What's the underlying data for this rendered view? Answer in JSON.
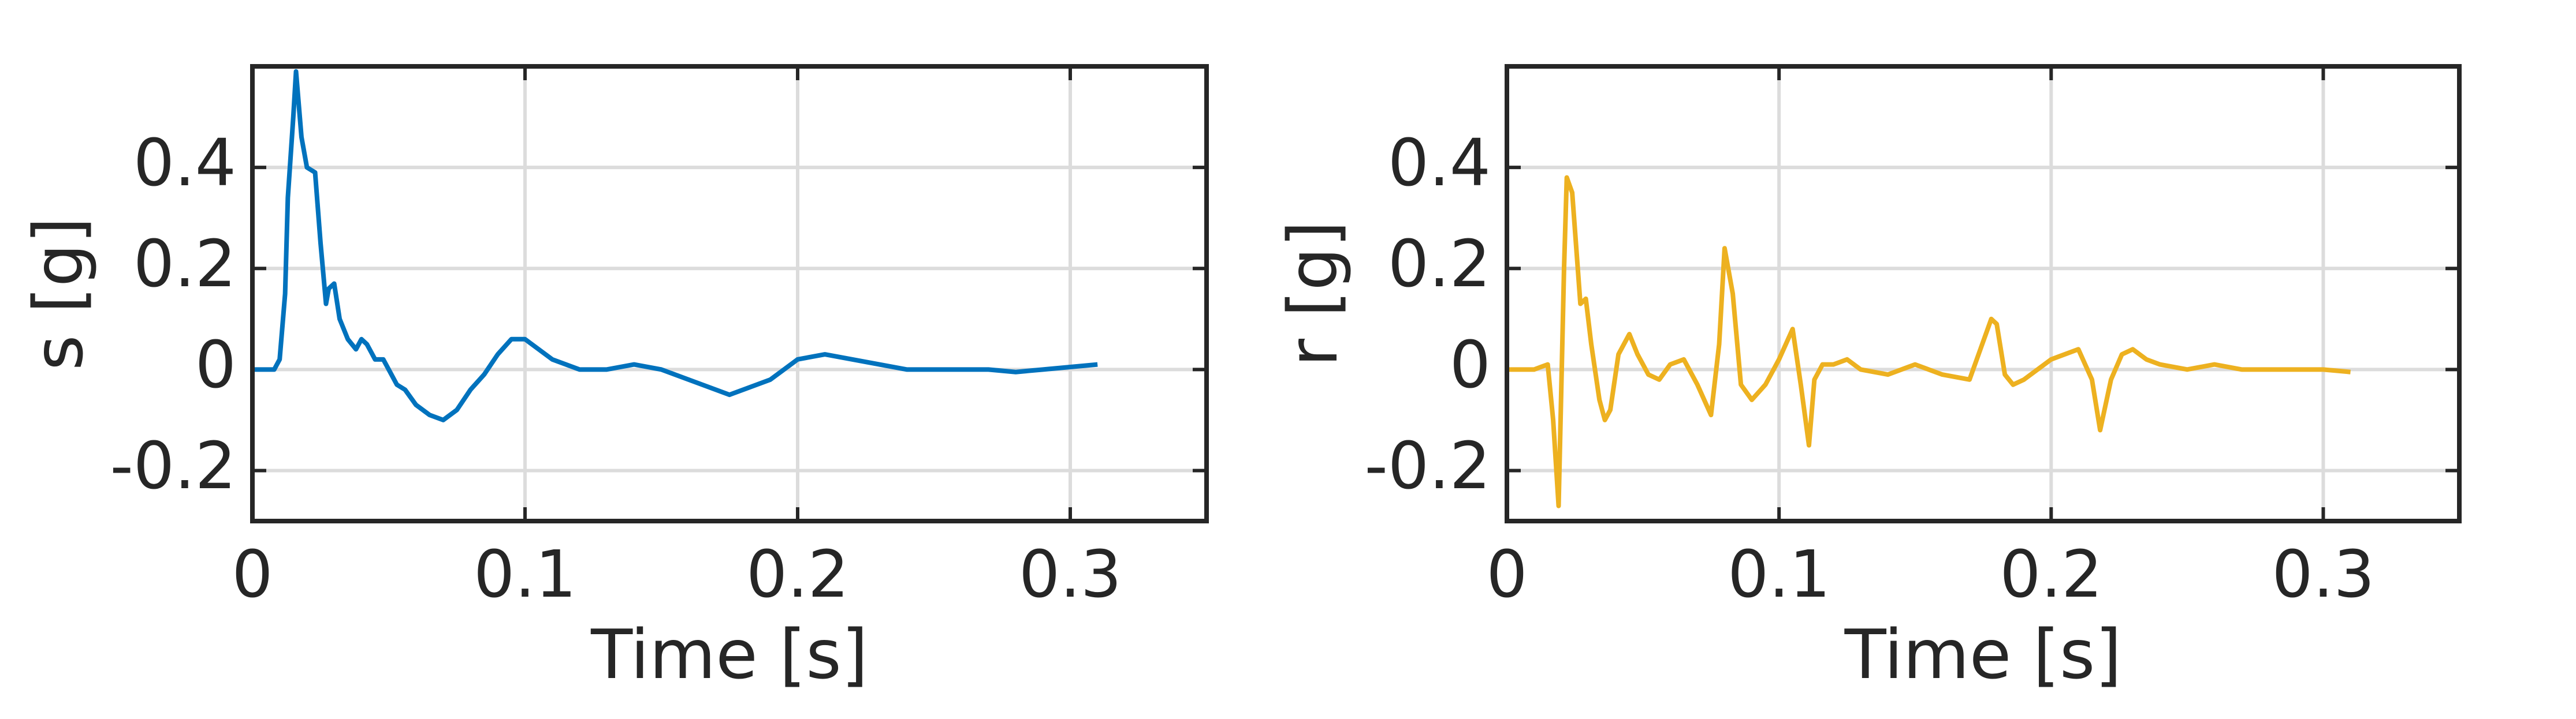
{
  "chart_data": [
    {
      "type": "line",
      "ylabel": "s [g]",
      "xlabel": "Time [s]",
      "color": "#0072bd",
      "x": [
        0,
        0.008,
        0.01,
        0.012,
        0.013,
        0.015,
        0.016,
        0.018,
        0.02,
        0.023,
        0.025,
        0.027,
        0.028,
        0.03,
        0.032,
        0.035,
        0.038,
        0.04,
        0.042,
        0.045,
        0.048,
        0.05,
        0.053,
        0.056,
        0.06,
        0.065,
        0.07,
        0.075,
        0.08,
        0.085,
        0.09,
        0.095,
        0.1,
        0.105,
        0.11,
        0.12,
        0.13,
        0.14,
        0.15,
        0.16,
        0.17,
        0.175,
        0.18,
        0.19,
        0.2,
        0.21,
        0.22,
        0.23,
        0.24,
        0.25,
        0.26,
        0.27,
        0.28,
        0.29,
        0.3,
        0.31
      ],
      "values": [
        0,
        0,
        0.02,
        0.15,
        0.34,
        0.5,
        0.59,
        0.46,
        0.4,
        0.39,
        0.25,
        0.13,
        0.16,
        0.17,
        0.1,
        0.06,
        0.04,
        0.06,
        0.05,
        0.02,
        0.02,
        0,
        -0.03,
        -0.04,
        -0.07,
        -0.09,
        -0.1,
        -0.08,
        -0.04,
        -0.01,
        0.03,
        0.06,
        0.06,
        0.04,
        0.02,
        0,
        0,
        0.01,
        0,
        -0.02,
        -0.04,
        -0.05,
        -0.04,
        -0.02,
        0.02,
        0.03,
        0.02,
        0.01,
        0,
        0,
        0,
        0,
        -0.005,
        0,
        0.005,
        0.01
      ],
      "xlim": [
        0,
        0.35
      ],
      "xticks": [
        0,
        0.1,
        0.2,
        0.3
      ],
      "ylim": [
        -0.3,
        0.6
      ],
      "yticks": [
        -0.2,
        0,
        0.2,
        0.4
      ],
      "grid": true
    },
    {
      "type": "line",
      "ylabel": "r [g]",
      "xlabel": "Time [s]",
      "color": "#edb120",
      "x": [
        0,
        0.01,
        0.015,
        0.017,
        0.019,
        0.021,
        0.022,
        0.024,
        0.027,
        0.029,
        0.031,
        0.034,
        0.036,
        0.038,
        0.041,
        0.045,
        0.048,
        0.052,
        0.056,
        0.06,
        0.065,
        0.07,
        0.075,
        0.078,
        0.08,
        0.083,
        0.086,
        0.09,
        0.095,
        0.1,
        0.105,
        0.108,
        0.111,
        0.113,
        0.116,
        0.12,
        0.125,
        0.13,
        0.14,
        0.15,
        0.155,
        0.16,
        0.17,
        0.178,
        0.18,
        0.183,
        0.186,
        0.19,
        0.2,
        0.21,
        0.215,
        0.218,
        0.222,
        0.226,
        0.23,
        0.235,
        0.24,
        0.25,
        0.26,
        0.27,
        0.28,
        0.29,
        0.3,
        0.31
      ],
      "values": [
        0,
        0,
        0.01,
        -0.1,
        -0.27,
        0.2,
        0.38,
        0.35,
        0.13,
        0.14,
        0.05,
        -0.06,
        -0.1,
        -0.08,
        0.03,
        0.07,
        0.03,
        -0.01,
        -0.02,
        0.01,
        0.02,
        -0.03,
        -0.09,
        0.05,
        0.24,
        0.15,
        -0.03,
        -0.06,
        -0.03,
        0.02,
        0.08,
        -0.03,
        -0.15,
        -0.02,
        0.01,
        0.01,
        0.02,
        0,
        -0.01,
        0.01,
        0,
        -0.01,
        -0.02,
        0.1,
        0.09,
        -0.01,
        -0.03,
        -0.02,
        0.02,
        0.04,
        -0.02,
        -0.12,
        -0.02,
        0.03,
        0.04,
        0.02,
        0.01,
        0,
        0.01,
        0,
        0,
        0,
        0,
        -0.005
      ],
      "xlim": [
        0,
        0.35
      ],
      "xticks": [
        0,
        0.1,
        0.2,
        0.3
      ],
      "ylim": [
        -0.3,
        0.6
      ],
      "yticks": [
        -0.2,
        0,
        0.2,
        0.4
      ],
      "grid": true
    }
  ]
}
